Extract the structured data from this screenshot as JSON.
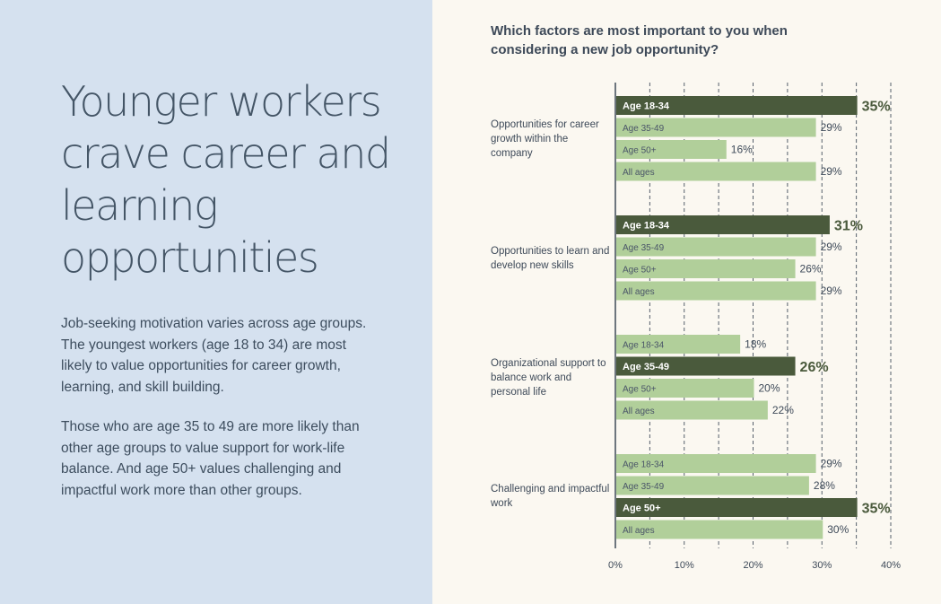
{
  "left_panel": {
    "headline": "Younger workers crave career and learning opportunities",
    "paragraph1": "Job-seeking motivation varies across age groups. The youngest workers (age 18 to 34) are most likely to value opportunities for career growth, learning, and skill building.",
    "paragraph2": "Those who are age 35 to 49 are more likely than other age groups to value support for work-life balance. And age 50+ values challenging and impactful work more than other groups."
  },
  "colors": {
    "left_background": "#d5e1ef",
    "right_background": "#fbf8f1",
    "highlight_bar": "#4a5a3c",
    "regular_bar": "#b1cf9a",
    "text": "#3e4a59"
  },
  "chart_data": {
    "type": "bar",
    "orientation": "horizontal",
    "title": "Which factors are most important to you when considering a new job opportunity?",
    "xlim": [
      0,
      40
    ],
    "x_ticks": [
      "0%",
      "10%",
      "20%",
      "30%",
      "40%"
    ],
    "grid": "vertical dashed lines every 5%",
    "groups": [
      {
        "label": "Opportunities for career growth within the company",
        "bars": [
          {
            "name": "Age 18-34",
            "value": 35,
            "display": "35%",
            "highlight": true
          },
          {
            "name": "Age 35-49",
            "value": 29,
            "display": "29%",
            "highlight": false
          },
          {
            "name": "Age 50+",
            "value": 16,
            "display": "16%",
            "highlight": false
          },
          {
            "name": "All ages",
            "value": 29,
            "display": "29%",
            "highlight": false
          }
        ]
      },
      {
        "label": "Opportunities to learn and develop new skills",
        "bars": [
          {
            "name": "Age 18-34",
            "value": 31,
            "display": "31%",
            "highlight": true
          },
          {
            "name": "Age 35-49",
            "value": 29,
            "display": "29%",
            "highlight": false
          },
          {
            "name": "Age 50+",
            "value": 26,
            "display": "26%",
            "highlight": false
          },
          {
            "name": "All ages",
            "value": 29,
            "display": "29%",
            "highlight": false
          }
        ]
      },
      {
        "label": "Organizational support to balance work and personal life",
        "bars": [
          {
            "name": "Age 18-34",
            "value": 18,
            "display": "18%",
            "highlight": false
          },
          {
            "name": "Age 35-49",
            "value": 26,
            "display": "26%",
            "highlight": true
          },
          {
            "name": "Age 50+",
            "value": 20,
            "display": "20%",
            "highlight": false
          },
          {
            "name": "All ages",
            "value": 22,
            "display": "22%",
            "highlight": false
          }
        ]
      },
      {
        "label": "Challenging and impactful work",
        "bars": [
          {
            "name": "Age 18-34",
            "value": 29,
            "display": "29%",
            "highlight": false
          },
          {
            "name": "Age 35-49",
            "value": 28,
            "display": "28%",
            "highlight": false
          },
          {
            "name": "Age 50+",
            "value": 35,
            "display": "35%",
            "highlight": true
          },
          {
            "name": "All ages",
            "value": 30,
            "display": "30%",
            "highlight": false
          }
        ]
      }
    ]
  }
}
